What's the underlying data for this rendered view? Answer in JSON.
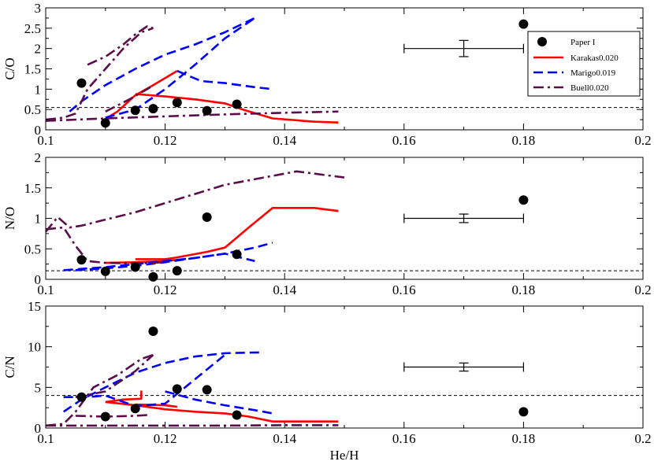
{
  "chart_data": [
    {
      "type": "line",
      "ylabel": "C/O",
      "xlim": [
        0.1,
        0.2
      ],
      "ylim": [
        0,
        3
      ],
      "xticks": [
        "0.1",
        "0.12",
        "0.14",
        "0.16",
        "0.18",
        "0.2"
      ],
      "yticks": [
        "0",
        "0.5",
        "1",
        "1.5",
        "2",
        "2.5",
        "3"
      ],
      "reference_line": 0.55,
      "paper_points": {
        "x": [
          0.106,
          0.11,
          0.115,
          0.118,
          0.122,
          0.127,
          0.132,
          0.18
        ],
        "y": [
          1.15,
          0.17,
          0.48,
          0.52,
          0.67,
          0.47,
          0.63,
          2.6
        ]
      },
      "errorbar": {
        "x": 0.17,
        "y": 2.0,
        "xerr": 0.01,
        "yerr": 0.2
      },
      "series": [
        {
          "name": "Karakas0.020",
          "color": "#ff0000",
          "style": "solid",
          "lines": [
            {
              "x": [
                0.11,
                0.112,
                0.115,
                0.118,
                0.122
              ],
              "y": [
                0.27,
                0.45,
                0.85,
                1.1,
                1.45
              ]
            },
            {
              "x": [
                0.115,
                0.12,
                0.125,
                0.13,
                0.133,
                0.138,
                0.145,
                0.149
              ],
              "y": [
                0.88,
                0.82,
                0.75,
                0.65,
                0.5,
                0.28,
                0.2,
                0.18
              ]
            }
          ]
        },
        {
          "name": "Marigo0.019",
          "color": "#0000ff",
          "style": "dashed",
          "lines": [
            {
              "x": [
                0.104,
                0.106,
                0.11,
                0.115,
                0.12,
                0.125,
                0.13,
                0.135
              ],
              "y": [
                0.45,
                0.7,
                1.1,
                1.5,
                1.85,
                2.1,
                2.4,
                2.75
              ]
            },
            {
              "x": [
                0.11,
                0.115,
                0.12,
                0.125,
                0.13,
                0.135
              ],
              "y": [
                0.3,
                0.5,
                1.0,
                1.6,
                2.25,
                2.75
              ]
            },
            {
              "x": [
                0.122,
                0.126,
                0.13,
                0.135,
                0.138
              ],
              "y": [
                1.45,
                1.2,
                1.15,
                1.05,
                1.0
              ]
            }
          ]
        },
        {
          "name": "Buell0.020",
          "color": "#5a0d4b",
          "style": "dashdot",
          "lines": [
            {
              "x": [
                0.1,
                0.103,
                0.105,
                0.107,
                0.11,
                0.113,
                0.116,
                0.118
              ],
              "y": [
                0.25,
                0.3,
                0.4,
                1.0,
                1.5,
                2.0,
                2.4,
                2.5
              ]
            },
            {
              "x": [
                0.107,
                0.11,
                0.113,
                0.115,
                0.117,
                0.118
              ],
              "y": [
                1.6,
                1.8,
                2.1,
                2.35,
                2.55,
                2.5
              ]
            },
            {
              "x": [
                0.11,
                0.114,
                0.117,
                0.118
              ],
              "y": [
                0.45,
                0.75,
                1.0,
                1.1
              ]
            },
            {
              "x": [
                0.1,
                0.11,
                0.12,
                0.13,
                0.14,
                0.149
              ],
              "y": [
                0.22,
                0.28,
                0.33,
                0.38,
                0.42,
                0.45
              ]
            }
          ]
        }
      ],
      "legend": {
        "placement": "top-right",
        "entries": [
          "Paper I",
          "Karakas0.020",
          "Marigo0.019",
          "Buell0.020"
        ]
      }
    },
    {
      "type": "line",
      "ylabel": "N/O",
      "xlim": [
        0.1,
        0.2
      ],
      "ylim": [
        0,
        2
      ],
      "xticks": [
        "0.1",
        "0.12",
        "0.14",
        "0.16",
        "0.18",
        "0.2"
      ],
      "yticks": [
        "0",
        "0.5",
        "1",
        "1.5",
        "2"
      ],
      "reference_line": 0.14,
      "paper_points": {
        "x": [
          0.106,
          0.11,
          0.115,
          0.118,
          0.122,
          0.127,
          0.132,
          0.18
        ],
        "y": [
          0.32,
          0.13,
          0.2,
          0.04,
          0.14,
          1.02,
          0.41,
          1.3
        ]
      },
      "errorbar": {
        "x": 0.17,
        "y": 1.0,
        "xerr": 0.01,
        "yerr": 0.07
      },
      "series": [
        {
          "name": "Karakas0.020",
          "color": "#ff0000",
          "style": "solid",
          "lines": [
            {
              "x": [
                0.115,
                0.12,
                0.122,
                0.127,
                0.13,
                0.134,
                0.138,
                0.145,
                0.149
              ],
              "y": [
                0.33,
                0.33,
                0.36,
                0.45,
                0.52,
                0.85,
                1.17,
                1.17,
                1.12
              ]
            },
            {
              "x": [
                0.11,
                0.115,
                0.12,
                0.122
              ],
              "y": [
                0.27,
                0.28,
                0.3,
                0.32
              ]
            }
          ]
        },
        {
          "name": "Marigo0.019",
          "color": "#0000ff",
          "style": "dashed",
          "lines": [
            {
              "x": [
                0.103,
                0.11,
                0.115,
                0.12,
                0.125,
                0.13,
                0.135
              ],
              "y": [
                0.15,
                0.2,
                0.25,
                0.3,
                0.35,
                0.42,
                0.3
              ]
            },
            {
              "x": [
                0.105,
                0.11,
                0.115,
                0.12,
                0.125,
                0.13,
                0.135,
                0.138
              ],
              "y": [
                0.15,
                0.18,
                0.22,
                0.28,
                0.35,
                0.42,
                0.52,
                0.6
              ]
            }
          ]
        },
        {
          "name": "Buell0.020",
          "color": "#5a0d4b",
          "style": "dashdot",
          "lines": [
            {
              "x": [
                0.1,
                0.102,
                0.104,
                0.106,
                0.11,
                0.115,
                0.12,
                0.13,
                0.142,
                0.15
              ],
              "y": [
                0.78,
                1.02,
                0.85,
                0.88,
                0.98,
                1.1,
                1.25,
                1.55,
                1.77,
                1.67
              ]
            },
            {
              "x": [
                0.1,
                0.103,
                0.105,
                0.107,
                0.11,
                0.115,
                0.12
              ],
              "y": [
                0.82,
                0.85,
                0.55,
                0.3,
                0.27,
                0.26,
                0.28
              ]
            }
          ]
        }
      ]
    },
    {
      "type": "line",
      "ylabel": "C/N",
      "xlabel": "He/H",
      "xlim": [
        0.1,
        0.2
      ],
      "ylim": [
        0,
        15
      ],
      "xticks": [
        "0.1",
        "0.12",
        "0.14",
        "0.16",
        "0.18",
        "0.2"
      ],
      "yticks": [
        "0",
        "5",
        "10",
        "15"
      ],
      "reference_line": 4.0,
      "paper_points": {
        "x": [
          0.106,
          0.11,
          0.115,
          0.118,
          0.122,
          0.127,
          0.132,
          0.18
        ],
        "y": [
          3.8,
          1.4,
          2.4,
          11.9,
          4.8,
          4.7,
          1.6,
          2.0
        ]
      },
      "errorbar": {
        "x": 0.17,
        "y": 7.5,
        "xerr": 0.01,
        "yerr": 0.5
      },
      "series": [
        {
          "name": "Karakas0.020",
          "color": "#ff0000",
          "style": "solid",
          "lines": [
            {
              "x": [
                0.11,
                0.115,
                0.12,
                0.125,
                0.13,
                0.134,
                0.138,
                0.145,
                0.149
              ],
              "y": [
                3.2,
                2.8,
                2.3,
                2.0,
                1.8,
                1.4,
                0.8,
                0.8,
                0.8
              ]
            },
            {
              "x": [
                0.11,
                0.113,
                0.116,
                0.116
              ],
              "y": [
                3.2,
                3.5,
                3.6,
                4.6
              ]
            },
            {
              "x": [
                0.115,
                0.12,
                0.122
              ],
              "y": [
                2.9,
                2.8,
                2.6
              ]
            }
          ]
        },
        {
          "name": "Marigo0.019",
          "color": "#0000ff",
          "style": "dashed",
          "lines": [
            {
              "x": [
                0.103,
                0.106,
                0.11,
                0.115,
                0.12,
                0.125,
                0.13,
                0.136
              ],
              "y": [
                2.0,
                3.5,
                5.0,
                6.8,
                8.0,
                8.8,
                9.2,
                9.3
              ]
            },
            {
              "x": [
                0.103,
                0.107,
                0.11,
                0.115,
                0.12,
                0.125,
                0.13
              ],
              "y": [
                3.8,
                3.8,
                4.0,
                2.7,
                3.0,
                6.0,
                9.0
              ]
            },
            {
              "x": [
                0.12,
                0.125,
                0.13,
                0.135,
                0.138
              ],
              "y": [
                4.5,
                3.5,
                2.8,
                2.2,
                1.8
              ]
            }
          ]
        },
        {
          "name": "Buell0.020",
          "color": "#5a0d4b",
          "style": "dashdot",
          "lines": [
            {
              "x": [
                0.1,
                0.103,
                0.105,
                0.108,
                0.112,
                0.116,
                0.118
              ],
              "y": [
                0.3,
                0.5,
                2.0,
                5.0,
                6.5,
                8.5,
                9.0
              ]
            },
            {
              "x": [
                0.105,
                0.11,
                0.115,
                0.118
              ],
              "y": [
                3.8,
                4.5,
                7.0,
                9.0
              ]
            },
            {
              "x": [
                0.105,
                0.11,
                0.115,
                0.117
              ],
              "y": [
                1.5,
                1.4,
                1.5,
                1.6
              ]
            },
            {
              "x": [
                0.1,
                0.11,
                0.12,
                0.13,
                0.14,
                0.149
              ],
              "y": [
                0.3,
                0.3,
                0.3,
                0.3,
                0.35,
                0.35
              ]
            }
          ]
        }
      ]
    }
  ]
}
